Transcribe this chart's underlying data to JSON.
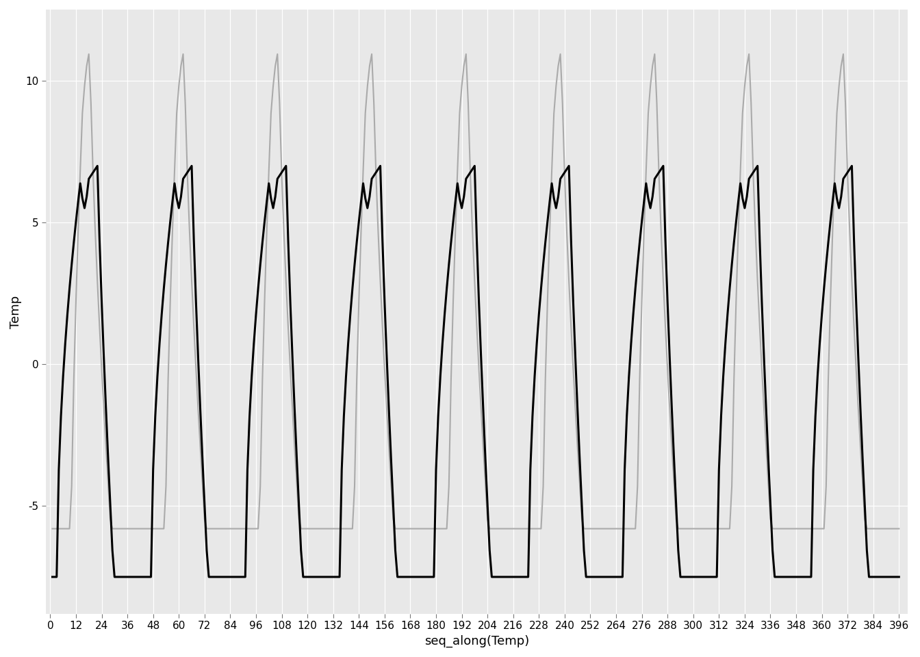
{
  "n_points": 396,
  "period": 44,
  "background_color": "#E8E8E8",
  "grid_color": "#FFFFFF",
  "line1_color": "#000000",
  "line1_lw": 2.2,
  "line2_color": "#AAAAAA",
  "line2_lw": 1.5,
  "xlabel": "seq_along(Temp)",
  "ylabel": "Temp",
  "ylim": [
    -8.8,
    12.5
  ],
  "xlim": [
    -2,
    400
  ],
  "yticks": [
    -5,
    0,
    5,
    10
  ],
  "xtick_step": 12,
  "xlabel_fontsize": 13,
  "ylabel_fontsize": 13,
  "tick_fontsize": 11,
  "rad_min": -5.8,
  "rad_peak": 11.0,
  "temp_deep_min": -7.5,
  "temp_peak1": 6.5,
  "temp_peak2": 7.0
}
